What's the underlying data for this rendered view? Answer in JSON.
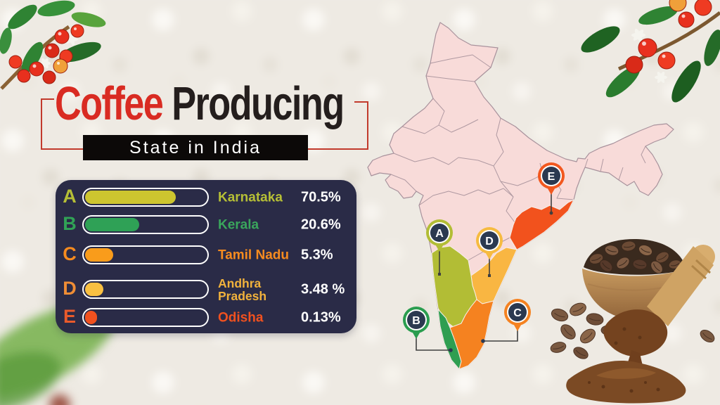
{
  "title": {
    "word1": "Coffee",
    "word2": "Producing",
    "subtitle": "State in India"
  },
  "accent_colors": {
    "red": "#c23a2c",
    "panel_bg": "#2a2b47",
    "marker_navy": "#2b3950"
  },
  "chart_data": {
    "type": "bar",
    "title": "Coffee Producing State in India",
    "categories": [
      "Karnataka",
      "Kerala",
      "Tamil Nadu",
      "Andhra Pradesh",
      "Odisha"
    ],
    "values": [
      70.5,
      20.6,
      5.3,
      3.48,
      0.13
    ],
    "xlim": [
      0,
      100
    ],
    "legend_position": "none",
    "grid": false,
    "rows": [
      {
        "letter": "A",
        "state": "Karnataka",
        "value_label": "70.5%",
        "fraction": 0.75,
        "letter_color": "#b6bf36",
        "bar_color": "#cdc52f",
        "label_color": "#b6bf36"
      },
      {
        "letter": "B",
        "state": "Kerala",
        "value_label": "20.6%",
        "fraction": 0.45,
        "letter_color": "#31a356",
        "bar_color": "#2fa156",
        "label_color": "#3aa65c"
      },
      {
        "letter": "C",
        "state": "Tamil Nadu",
        "value_label": "5.3%",
        "fraction": 0.23,
        "letter_color": "#f68b1f",
        "bar_color": "#f99c1b",
        "label_color": "#f68b1f"
      },
      {
        "letter": "D",
        "state": "Andhra\nPradesh",
        "value_label": "3.48 %",
        "fraction": 0.15,
        "letter_color": "#ef8d35",
        "bar_color": "#f9c041",
        "label_color": "#f1b23c"
      },
      {
        "letter": "E",
        "state": "Odisha",
        "value_label": "0.13%",
        "fraction": 0.1,
        "letter_color": "#ea5a2b",
        "bar_color": "#f1511f",
        "label_color": "#f1511f"
      }
    ]
  },
  "map": {
    "base_color": "#f8dbd9",
    "border_color": "#a8929c",
    "state_colors": {
      "Karnataka": "#b2bd35",
      "Kerala": "#2f9e51",
      "Tamil Nadu": "#f58220",
      "Andhra Pradesh": "#f9b642",
      "Odisha": "#f2521d"
    },
    "markers": [
      {
        "letter": "A",
        "color": "#b2bd35"
      },
      {
        "letter": "B",
        "color": "#2a9d4f"
      },
      {
        "letter": "C",
        "color": "#f58220"
      },
      {
        "letter": "D",
        "color": "#f6bb40"
      },
      {
        "letter": "E",
        "color": "#f2581f"
      }
    ]
  }
}
